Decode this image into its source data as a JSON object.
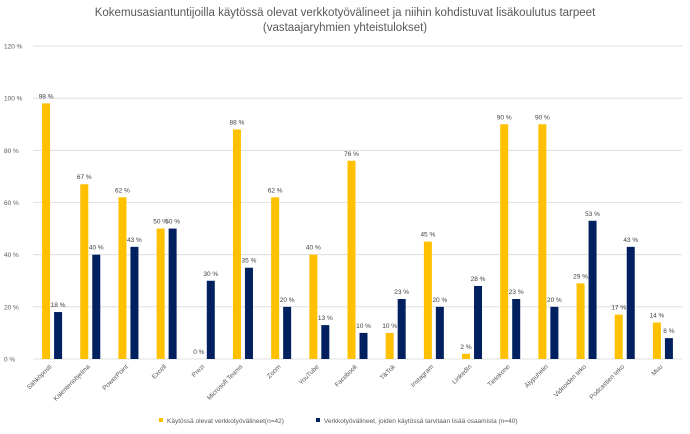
{
  "chart_data": {
    "type": "bar",
    "title": "Kokemusasiantuntijoilla käytössä olevat verkkotyövälineet ja niihin kohdistuvat lisäkoulutus tarpeet",
    "subtitle": "(vastaajaryhmien yhteistulokset)",
    "xlabel": "",
    "ylabel": "",
    "ylim": [
      0,
      120
    ],
    "yticks": [
      0,
      20,
      40,
      60,
      80,
      100,
      120
    ],
    "ytick_suffix": " %",
    "grid": true,
    "legend_position": "bottom",
    "categories": [
      "Sähköposti",
      "Kalenteriohjelma",
      "PowerPoint",
      "Excell",
      "Prezi",
      "Microsoft Teams",
      "Zoom",
      "YouTube",
      "Facebook",
      "TikTok",
      "Instagram",
      "LinkedIn",
      "Tietokone",
      "Älypuhelin",
      "Videoiden teko",
      "Podcastien teko",
      "Muu"
    ],
    "series": [
      {
        "name": "Käytössä olevat verkkotyövälineet(n=42)",
        "color": "#FFC000",
        "values": [
          98,
          67,
          62,
          50,
          0,
          88,
          62,
          40,
          76,
          10,
          45,
          2,
          90,
          90,
          29,
          17,
          14
        ],
        "labels": [
          "98 %",
          "67 %",
          "62 %",
          "50 %",
          "0 %",
          "88 %",
          "62 %",
          "40 %",
          "76 %",
          "10 %",
          "45 %",
          "2 %",
          "90 %",
          "90 %",
          "29 %",
          "17 %",
          "14 %"
        ]
      },
      {
        "name": "Verkkotyövälineet, joiden käytössä tarvitaan lisää osaamista (n=40)",
        "color": "#002060",
        "values": [
          18,
          40,
          43,
          50,
          30,
          35,
          20,
          13,
          10,
          23,
          20,
          28,
          23,
          20,
          53,
          43,
          8
        ],
        "labels": [
          "18 %",
          "40 %",
          "43 %",
          "50 %",
          "30 %",
          "35 %",
          "20 %",
          "13 %",
          "10 %",
          "23 %",
          "20 %",
          "28 %",
          "23 %",
          "20 %",
          "53 %",
          "43 %",
          "8 %"
        ]
      }
    ]
  }
}
